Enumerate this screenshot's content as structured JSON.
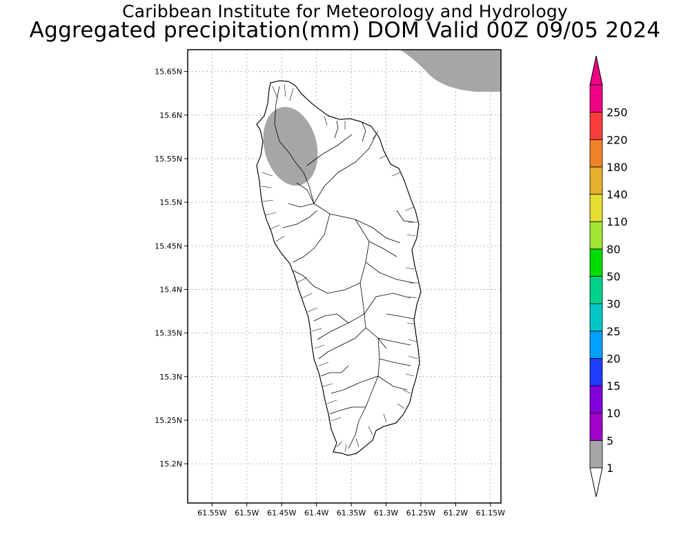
{
  "title": {
    "line1": "Caribbean Institute for Meteorology and Hydrology",
    "line2": "Aggregated precipitation(mm) DOM Valid 00Z 09/05 2024"
  },
  "map": {
    "lon_range": [
      -61.585,
      -61.135
    ],
    "lat_range": [
      15.155,
      15.675
    ],
    "x_ticks": [
      {
        "value": -61.55,
        "label": "61.55W"
      },
      {
        "value": -61.5,
        "label": "61.5W"
      },
      {
        "value": -61.45,
        "label": "61.45W"
      },
      {
        "value": -61.4,
        "label": "61.4W"
      },
      {
        "value": -61.35,
        "label": "61.35W"
      },
      {
        "value": -61.3,
        "label": "61.3W"
      },
      {
        "value": -61.25,
        "label": "61.25W"
      },
      {
        "value": -61.2,
        "label": "61.2W"
      },
      {
        "value": -61.15,
        "label": "61.15W"
      }
    ],
    "y_ticks": [
      {
        "value": 15.65,
        "label": "15.65N"
      },
      {
        "value": 15.6,
        "label": "15.6N"
      },
      {
        "value": 15.55,
        "label": "15.55N"
      },
      {
        "value": 15.5,
        "label": "15.5N"
      },
      {
        "value": 15.45,
        "label": "15.45N"
      },
      {
        "value": 15.4,
        "label": "15.4N"
      },
      {
        "value": 15.35,
        "label": "15.35N"
      },
      {
        "value": 15.3,
        "label": "15.3N"
      },
      {
        "value": 15.25,
        "label": "15.25N"
      },
      {
        "value": 15.2,
        "label": "15.2N"
      }
    ],
    "grid": "dotted",
    "precip_areas": [
      {
        "bin": "1-5 mm",
        "color": "#a6a6a6",
        "description": "northwest Dominica"
      },
      {
        "bin": "1-5 mm",
        "color": "#a6a6a6",
        "description": "northeast corner offshore"
      }
    ]
  },
  "colorbar": {
    "levels": [
      "1",
      "5",
      "10",
      "15",
      "20",
      "25",
      "30",
      "50",
      "80",
      "110",
      "140",
      "180",
      "220",
      "250"
    ],
    "colors": [
      "#a6a6a6",
      "#a000c8",
      "#8200dc",
      "#1e3cff",
      "#00a0ff",
      "#00c8c8",
      "#00d28c",
      "#00dc00",
      "#a0e632",
      "#e6dc32",
      "#e6af2d",
      "#f08228",
      "#fa3c3c",
      "#f00082"
    ],
    "over_color": "#f00082",
    "under_color": "#ffffff"
  }
}
